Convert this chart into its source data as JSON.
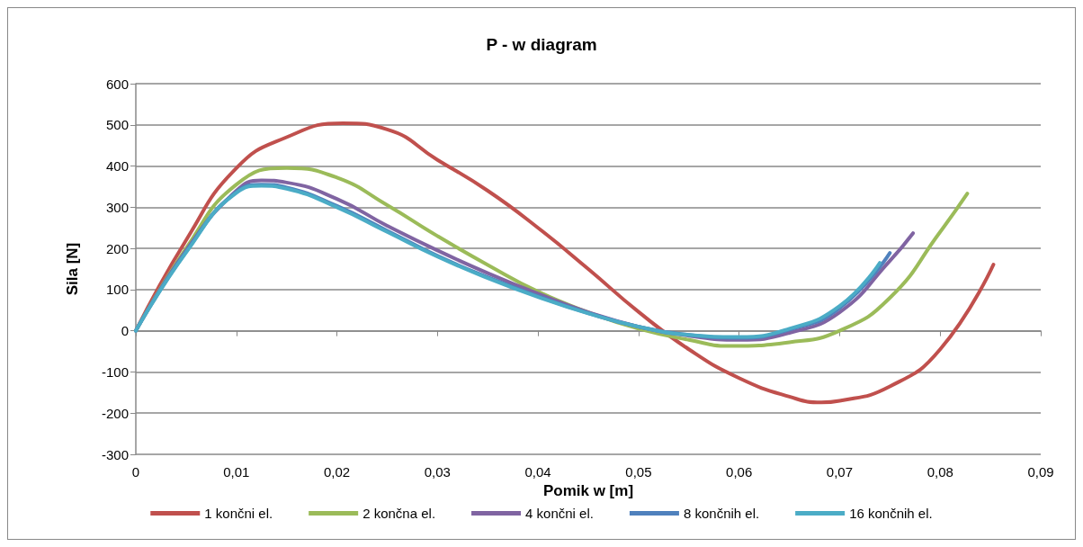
{
  "chart_data": {
    "type": "line",
    "title": "P - w diagram",
    "xlabel": "Pomik w [m]",
    "ylabel": "Sila [N]",
    "xlim": [
      0,
      0.09
    ],
    "xticks": [
      0,
      {
        "value": 0.01,
        "label": "0,01"
      },
      {
        "value": 0.02,
        "label": "0,02"
      },
      {
        "value": 0.03,
        "label": "0,03"
      },
      {
        "value": 0.04,
        "label": "0,04"
      },
      {
        "value": 0.05,
        "label": "0,05"
      },
      {
        "value": 0.06,
        "label": "0,06"
      },
      {
        "value": 0.07,
        "label": "0,07"
      },
      {
        "value": 0.08,
        "label": "0,08"
      },
      {
        "value": 0.09,
        "label": "0,09"
      }
    ],
    "ylim": [
      -300,
      600
    ],
    "yticks": [
      -300,
      -200,
      -100,
      0,
      100,
      200,
      300,
      400,
      500,
      600
    ],
    "grid": "y",
    "legend": "bottom",
    "marker": "none",
    "line_style": "solid",
    "series": [
      {
        "name": "1 končni el.",
        "color": "#c0504d",
        "x": [
          0,
          0.005,
          0.01,
          0.015,
          0.0206,
          0.025,
          0.03,
          0.035,
          0.04,
          0.045,
          0.05,
          0.055,
          0.06,
          0.065,
          0.0682,
          0.07,
          0.075,
          0.08,
          0.0853
        ],
        "values": [
          0,
          220,
          395,
          470,
          504,
          489,
          415,
          340,
          250,
          150,
          46,
          -45,
          -115,
          -160,
          -174,
          -170,
          -135,
          -45,
          161
        ]
      },
      {
        "name": "2 končna el.",
        "color": "#9bbb59",
        "x": [
          0,
          0.005,
          0.01,
          0.015,
          0.02,
          0.025,
          0.03,
          0.035,
          0.04,
          0.045,
          0.05,
          0.055,
          0.059,
          0.065,
          0.07,
          0.075,
          0.08,
          0.0827
        ],
        "values": [
          0,
          200,
          355,
          395,
          372,
          305,
          230,
          160,
          95,
          45,
          5,
          -22,
          -37,
          -28,
          0,
          80,
          240,
          333
        ]
      },
      {
        "name": "4 končni el.",
        "color": "#8064a2",
        "x": [
          0,
          0.005,
          0.01,
          0.0125,
          0.015,
          0.02,
          0.025,
          0.03,
          0.035,
          0.04,
          0.045,
          0.05,
          0.055,
          0.06,
          0.065,
          0.07,
          0.075,
          0.0773
        ],
        "values": [
          0,
          195,
          340,
          365,
          360,
          320,
          255,
          195,
          140,
          90,
          45,
          10,
          -12,
          -22,
          -5,
          45,
          170,
          237
        ]
      },
      {
        "name": "8 končnih el.",
        "color": "#4f81bd",
        "x": [
          0,
          0.005,
          0.01,
          0.0125,
          0.015,
          0.02,
          0.025,
          0.03,
          0.035,
          0.04,
          0.045,
          0.05,
          0.055,
          0.06,
          0.065,
          0.07,
          0.075
        ],
        "values": [
          0,
          192,
          337,
          355,
          348,
          303,
          243,
          182,
          130,
          84,
          43,
          10,
          -10,
          -17,
          3,
          55,
          189
        ]
      },
      {
        "name": "16 končnih el.",
        "color": "#4bacc6",
        "x": [
          0,
          0.005,
          0.01,
          0.0125,
          0.015,
          0.02,
          0.025,
          0.03,
          0.035,
          0.04,
          0.045,
          0.05,
          0.055,
          0.06,
          0.065,
          0.07,
          0.074
        ],
        "values": [
          0,
          190,
          335,
          352,
          345,
          300,
          240,
          180,
          128,
          82,
          42,
          10,
          -10,
          -15,
          5,
          60,
          165
        ]
      }
    ]
  }
}
